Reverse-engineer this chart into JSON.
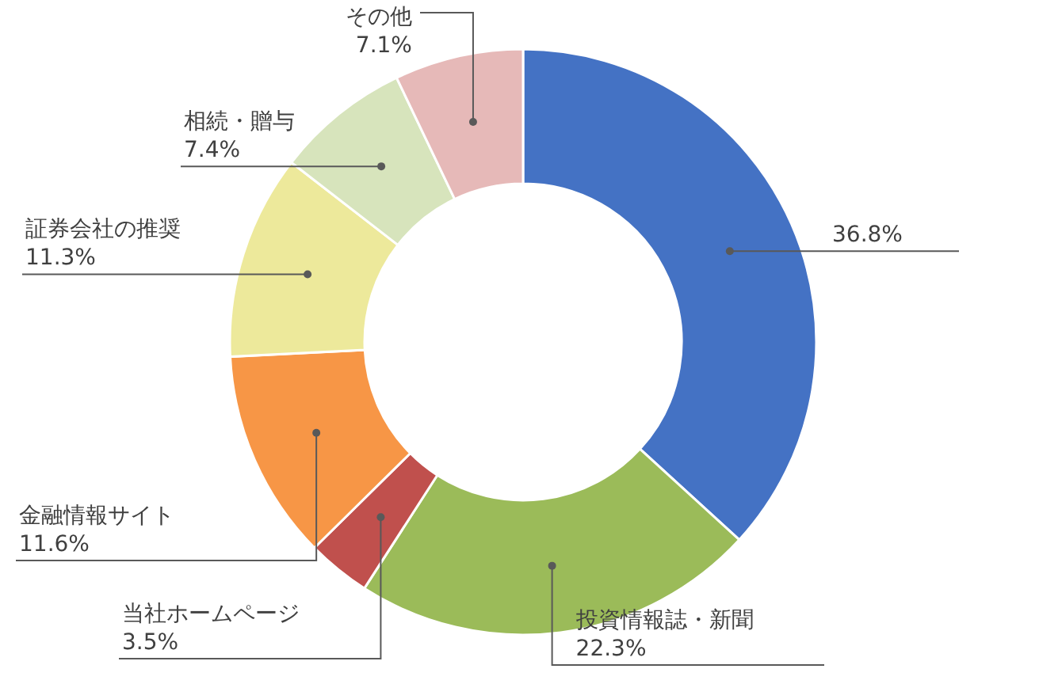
{
  "chart_data": {
    "type": "donut",
    "categories": [
      null,
      "投資情報誌・新聞",
      "当社ホームページ",
      "金融情報サイト",
      "証券会社の推奨",
      "相続・贈与",
      "その他"
    ],
    "values": [
      36.8,
      22.3,
      3.5,
      11.6,
      11.3,
      7.4,
      7.1
    ],
    "value_labels": [
      "36.8%",
      "22.3%",
      "3.5%",
      "11.6%",
      "11.3%",
      "7.4%",
      "7.1%"
    ],
    "colors": [
      "#4472c4",
      "#9bbb59",
      "#c0504d",
      "#f79646",
      "#ede99b",
      "#d7e4bc",
      "#e6b9b8"
    ]
  }
}
